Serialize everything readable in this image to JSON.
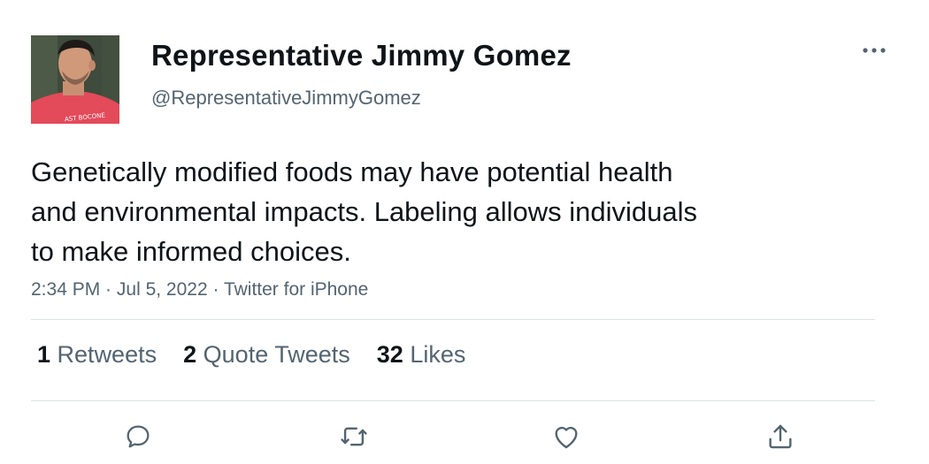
{
  "tweet": {
    "display_name": "Representative Jimmy Gomez",
    "handle": "@RepresentativeJimmyGomez",
    "text": "Genetically modified foods may have potential health\nand environmental impacts. Labeling allows individuals\nto make informed choices.",
    "time": "2:34 PM",
    "separator1": " · ",
    "date": "Jul 5, 2022",
    "separator2": " · ",
    "source": "Twitter for iPhone",
    "avatar_shirt_text": "AST BOCONE"
  },
  "stats": {
    "retweets": {
      "count": "1",
      "label": "Retweets"
    },
    "quotes": {
      "count": "2",
      "label": "Quote Tweets"
    },
    "likes": {
      "count": "32",
      "label": "Likes"
    }
  },
  "actions": [
    "reply-icon",
    "retweet-icon",
    "like-icon",
    "share-icon"
  ],
  "colors": {
    "text": "#0f1419",
    "secondary": "#536471",
    "divider": "#dfe3e6",
    "icon": "#536471"
  }
}
